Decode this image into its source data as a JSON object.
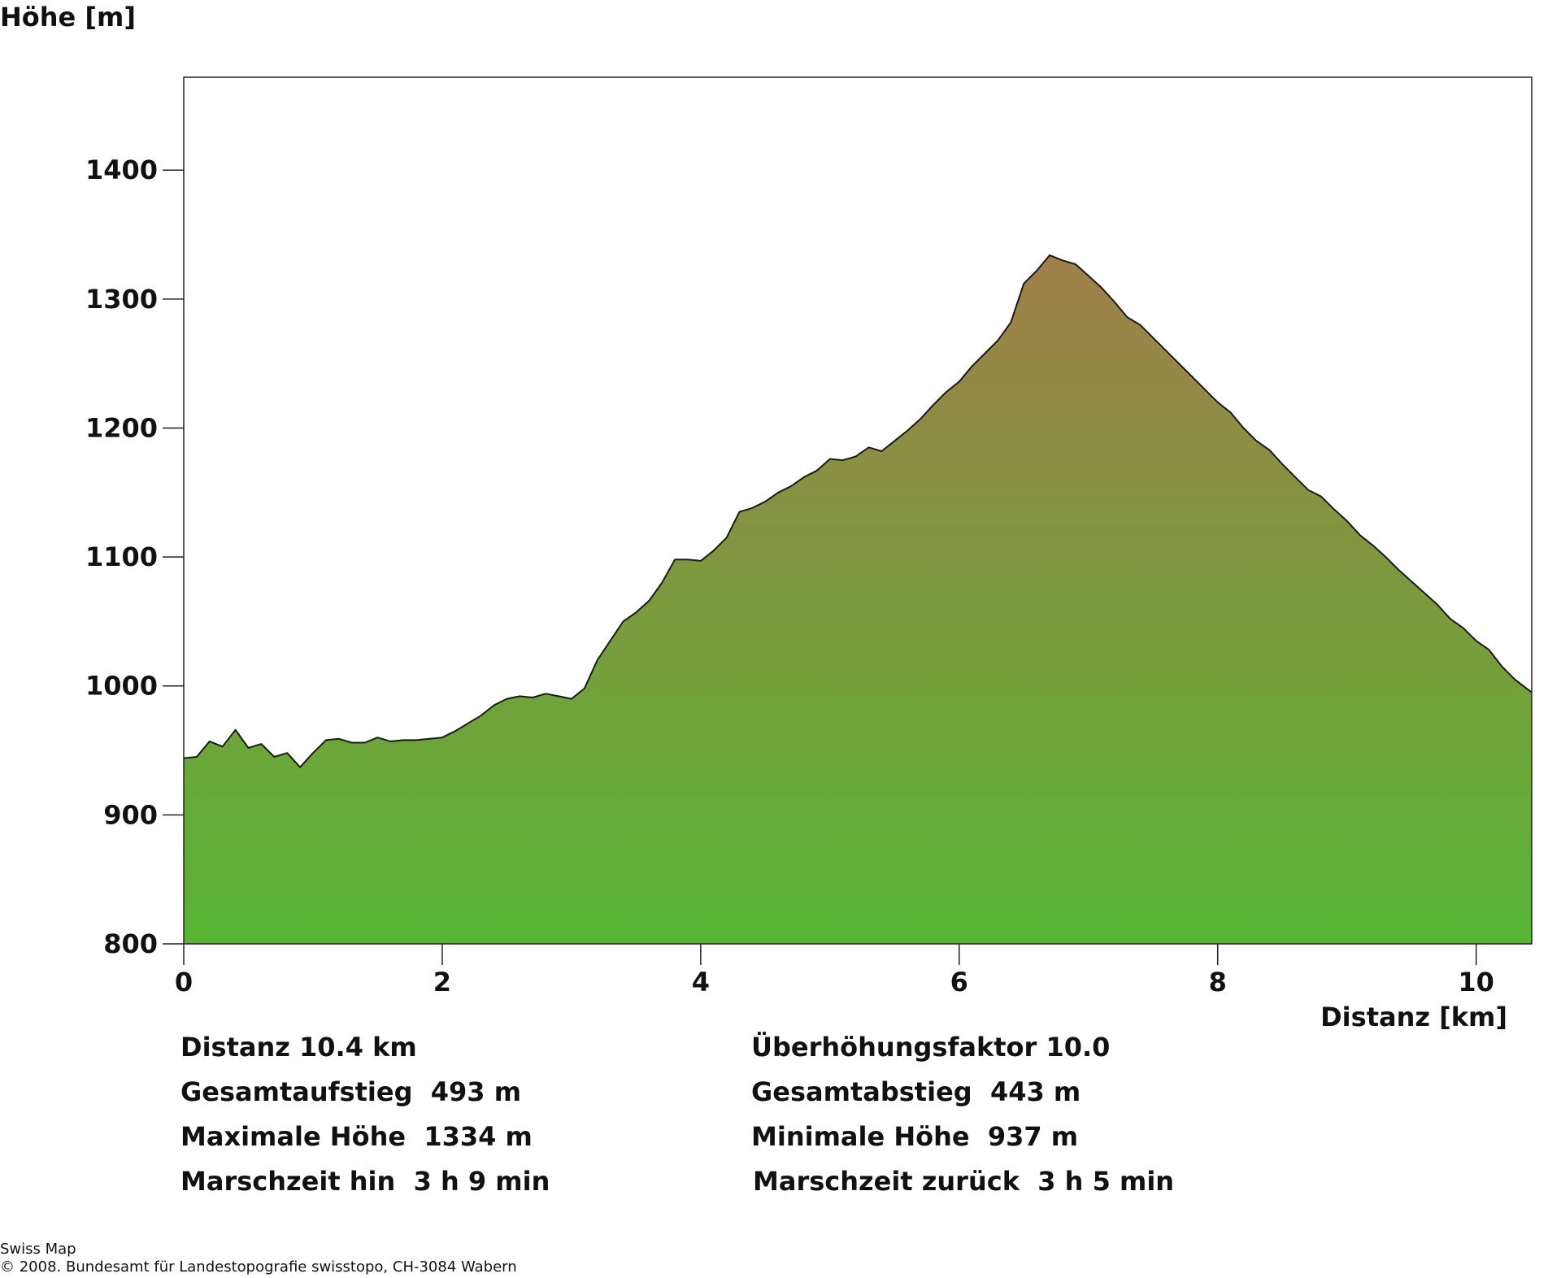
{
  "chart_data": {
    "type": "area",
    "xlabel": "Distanz [km]",
    "ylabel": "Höhe [m]",
    "xlim": [
      0,
      10.43
    ],
    "ylim": [
      800,
      1472
    ],
    "xticks": [
      0,
      2,
      4,
      6,
      8,
      10
    ],
    "yticks": [
      800,
      900,
      1000,
      1100,
      1200,
      1300,
      1400
    ],
    "grid": false,
    "series": [
      {
        "x": [
          0,
          0.1,
          0.2,
          0.3,
          0.4,
          0.5,
          0.6,
          0.7,
          0.8,
          0.9,
          1.0,
          1.1,
          1.2,
          1.3,
          1.4,
          1.5,
          1.6,
          1.7,
          1.8,
          1.9,
          2.0,
          2.1,
          2.2,
          2.3,
          2.4,
          2.5,
          2.6,
          2.7,
          2.8,
          2.9,
          3.0,
          3.1,
          3.2,
          3.3,
          3.4,
          3.5,
          3.6,
          3.7,
          3.8,
          3.9,
          4.0,
          4.1,
          4.2,
          4.3,
          4.4,
          4.5,
          4.6,
          4.7,
          4.8,
          4.9,
          5.0,
          5.1,
          5.2,
          5.3,
          5.4,
          5.5,
          5.6,
          5.7,
          5.8,
          5.9,
          6.0,
          6.1,
          6.2,
          6.3,
          6.4,
          6.5,
          6.6,
          6.7,
          6.8,
          6.9,
          7.0,
          7.1,
          7.2,
          7.3,
          7.4,
          7.5,
          7.6,
          7.7,
          7.8,
          7.9,
          8.0,
          8.1,
          8.2,
          8.3,
          8.4,
          8.5,
          8.6,
          8.7,
          8.8,
          8.9,
          9.0,
          9.1,
          9.2,
          9.3,
          9.4,
          9.5,
          9.6,
          9.7,
          9.8,
          9.9,
          10.0,
          10.1,
          10.2,
          10.3,
          10.43
        ],
        "y": [
          944,
          945,
          957,
          953,
          966,
          952,
          955,
          945,
          948,
          937,
          948,
          958,
          959,
          956,
          956,
          960,
          957,
          958,
          958,
          959,
          960,
          965,
          971,
          977,
          985,
          990,
          992,
          991,
          994,
          992,
          990,
          998,
          1020,
          1035,
          1050,
          1057,
          1066,
          1080,
          1098,
          1098,
          1097,
          1105,
          1115,
          1135,
          1138,
          1143,
          1150,
          1155,
          1162,
          1167,
          1176,
          1175,
          1178,
          1185,
          1182,
          1190,
          1198,
          1207,
          1218,
          1228,
          1236,
          1248,
          1258,
          1268,
          1282,
          1312,
          1322,
          1334,
          1330,
          1327,
          1318,
          1309,
          1298,
          1286,
          1280,
          1270,
          1260,
          1250,
          1240,
          1230,
          1220,
          1212,
          1200,
          1190,
          1183,
          1172,
          1162,
          1152,
          1147,
          1137,
          1128,
          1117,
          1109,
          1100,
          1090,
          1081,
          1072,
          1063,
          1052,
          1045,
          1035,
          1028,
          1015,
          1005,
          995
        ]
      }
    ]
  },
  "stats": {
    "distance": "Distanz 10.4 km",
    "exaggeration": "Überhöhungsfaktor 10.0",
    "ascent": "Gesamtaufstieg  493 m",
    "descent": "Gesamtabstieg  443 m",
    "max_height": "Maximale Höhe  1334 m",
    "min_height": "Minimale Höhe  937 m",
    "time_out": "Marschzeit hin  3 h 9 min",
    "time_back": "Marschzeit zurück  3 h 5 min"
  },
  "footer": {
    "line1": "Swiss Map",
    "line2": "© 2008. Bundesamt für Landestopografie swisstopo, CH-3084 Wabern"
  },
  "colors": {
    "fill_top": "#a07f4a",
    "fill_bottom": "#57b533",
    "outline": "#1a1a1a"
  }
}
